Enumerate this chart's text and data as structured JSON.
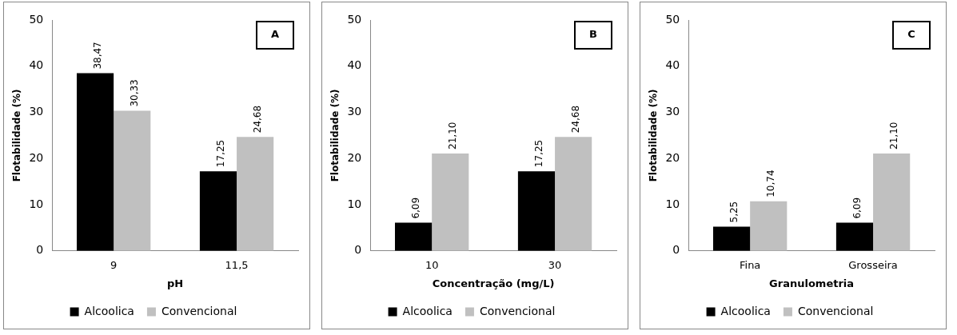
{
  "chart_data": [
    {
      "type": "bar",
      "title": "A",
      "xlabel": "pH",
      "ylabel": "Flotabilidade (%)",
      "categories": [
        "9",
        "11,5"
      ],
      "series": [
        {
          "name": "Alcoolica",
          "color": "#000000",
          "values": [
            38.47,
            17.25
          ],
          "value_labels": [
            "38,47",
            "17,25"
          ]
        },
        {
          "name": "Convencional",
          "color": "#c0c0c0",
          "values": [
            30.33,
            24.68
          ],
          "value_labels": [
            "30,33",
            "24,68"
          ]
        }
      ],
      "ylim": [
        0,
        50
      ],
      "yticks": [
        0,
        10,
        20,
        30,
        40,
        50
      ],
      "grid": false,
      "legend": "bottom"
    },
    {
      "type": "bar",
      "title": "B",
      "xlabel": "Concentração (mg/L)",
      "ylabel": "Flotabilidade (%)",
      "categories": [
        "10",
        "30"
      ],
      "series": [
        {
          "name": "Alcoolica",
          "color": "#000000",
          "values": [
            6.09,
            17.25
          ],
          "value_labels": [
            "6,09",
            "17,25"
          ]
        },
        {
          "name": "Convencional",
          "color": "#c0c0c0",
          "values": [
            21.1,
            24.68
          ],
          "value_labels": [
            "21,10",
            "24,68"
          ]
        }
      ],
      "ylim": [
        0,
        50
      ],
      "yticks": [
        0,
        10,
        20,
        30,
        40,
        50
      ],
      "grid": false,
      "legend": "bottom"
    },
    {
      "type": "bar",
      "title": "C",
      "xlabel": "Granulometria",
      "ylabel": "Flotabilidade (%)",
      "categories": [
        "Fina",
        "Grosseira"
      ],
      "series": [
        {
          "name": "Alcoolica",
          "color": "#000000",
          "values": [
            5.25,
            6.09
          ],
          "value_labels": [
            "5,25",
            "6,09"
          ]
        },
        {
          "name": "Convencional",
          "color": "#c0c0c0",
          "values": [
            10.74,
            21.1
          ],
          "value_labels": [
            "10,74",
            "21,10"
          ]
        }
      ],
      "ylim": [
        0,
        50
      ],
      "yticks": [
        0,
        10,
        20,
        30,
        40,
        50
      ],
      "grid": false,
      "legend": "bottom"
    }
  ]
}
